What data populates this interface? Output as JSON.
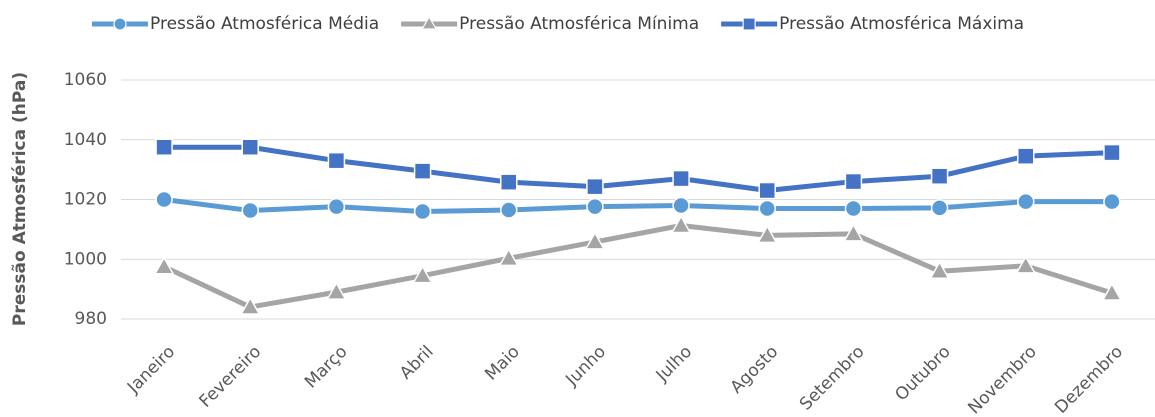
{
  "chart_data": {
    "type": "line",
    "y_label": "Pressão Atmosférica (hPa)",
    "categories": [
      "Janeiro",
      "Fevereiro",
      "Março",
      "Abril",
      "Maio",
      "Junho",
      "Julho",
      "Agosto",
      "Setembro",
      "Outubro",
      "Novembro",
      "Dezembro"
    ],
    "series": [
      {
        "name": "Pressão Atmosférica Média",
        "color": "#5b9bd5",
        "marker": "circle",
        "values": [
          1020,
          1016.3,
          1017.6,
          1016,
          1016.5,
          1017.6,
          1018,
          1017,
          1017,
          1017.2,
          1019.3,
          1019.3
        ]
      },
      {
        "name": "Pressão Atmosférica Mínima",
        "color": "#a5a5a5",
        "marker": "triangle",
        "values": [
          997.5,
          984,
          989,
          994.5,
          1000.3,
          1005.8,
          1011.3,
          1008,
          1008.5,
          996,
          997.8,
          988.7
        ]
      },
      {
        "name": "Pressão Atmosférica Máxima",
        "color": "#4472c4",
        "marker": "square",
        "values": [
          1037.5,
          1037.5,
          1033,
          1029.5,
          1025.8,
          1024.3,
          1027,
          1023,
          1026,
          1027.8,
          1034.5,
          1035.7
        ]
      }
    ],
    "ylim": [
      980,
      1060
    ],
    "yticks": [
      980,
      1000,
      1020,
      1040,
      1060
    ],
    "grid": true
  }
}
